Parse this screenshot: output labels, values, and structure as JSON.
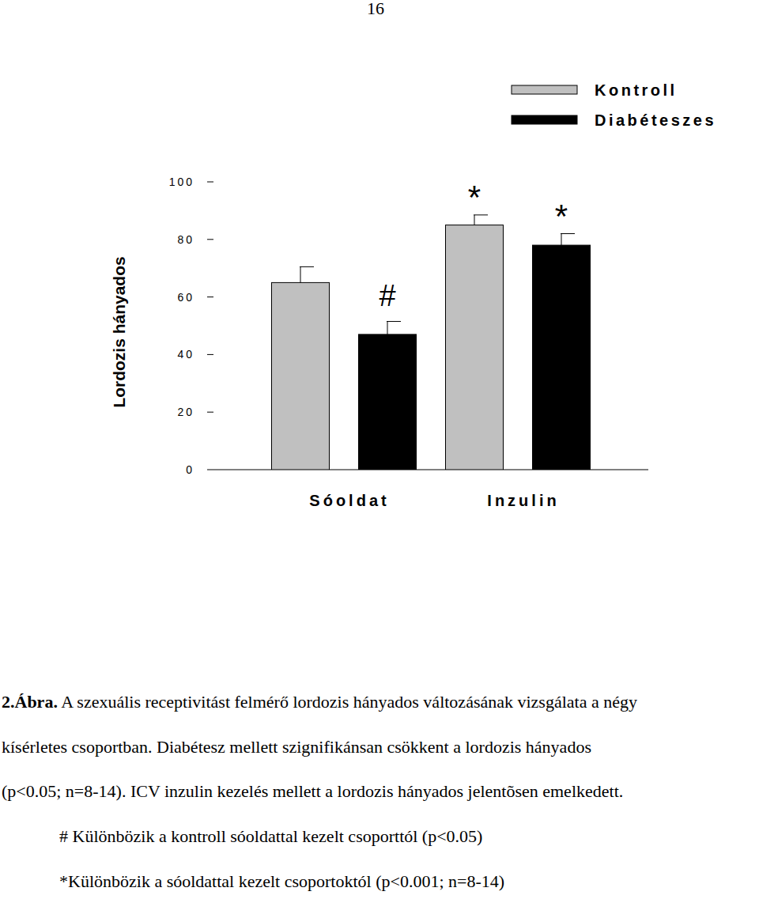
{
  "page": {
    "number": "16",
    "caption": {
      "label": "2.Ábra.",
      "lines": [
        "A szexuális receptivitást felmérő lordozis hányados változásának vizsgálata a négy",
        "kísérletes csoportban. Diabétesz mellett szignifikánsan csökkent a lordozis hányados",
        "(p<0.05; n=8-14). ICV inzulin kezelés mellett a lordozis hányados jelentõsen emelkedett.",
        "# Különbözik a kontroll sóoldattal kezelt csoporttól (p<0.05)",
        "*Különbözik a sóoldattal kezelt csoportoktól (p<0.001; n=8-14)"
      ]
    }
  },
  "chart_data": {
    "type": "bar",
    "y_label": "Lordozis hányados",
    "categories": [
      "Sóoldat",
      "Inzulin"
    ],
    "series": [
      {
        "name": "Kontroll",
        "color": "#c0c0c0",
        "values": [
          65,
          85
        ],
        "errors": [
          5.5,
          3.5
        ]
      },
      {
        "name": "Diabéteszes",
        "color": "#000000",
        "values": [
          47,
          78
        ],
        "errors": [
          4.5,
          4
        ]
      }
    ],
    "annotations": [
      {
        "text": "#",
        "series": 1,
        "index": 0
      },
      {
        "text": "*",
        "series": 0,
        "index": 1
      },
      {
        "text": "*",
        "series": 1,
        "index": 1
      }
    ],
    "ylim": [
      0,
      100
    ],
    "yticks": [
      0,
      20,
      40,
      60,
      80,
      100
    ],
    "grid": false,
    "legend": "upper right"
  }
}
